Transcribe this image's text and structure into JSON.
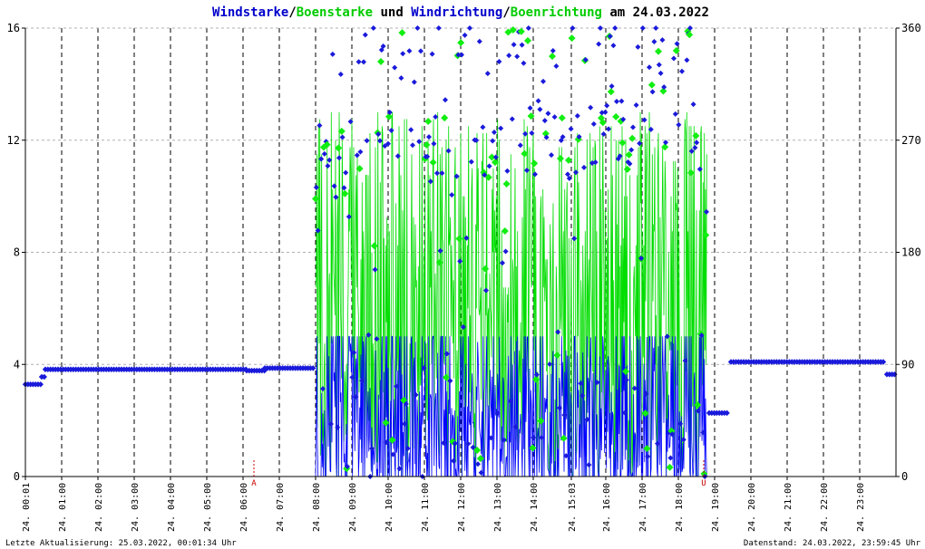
{
  "title_parts": [
    {
      "text": "Windstarke",
      "color": "#0000cc"
    },
    {
      "text": "/",
      "color": "#000000"
    },
    {
      "text": "Boenstarke",
      "color": "#00cc00"
    },
    {
      "text": " und ",
      "color": "#000000"
    },
    {
      "text": "Windrichtung",
      "color": "#0000cc"
    },
    {
      "text": "/",
      "color": "#000000"
    },
    {
      "text": "Boenrichtung",
      "color": "#00cc00"
    },
    {
      "text": " am 24.03.2022",
      "color": "#000000"
    }
  ],
  "footer": {
    "left": "Letzte Aktualisierung: 25.03.2022, 00:01:34 Uhr",
    "right": "Datenstand: 24.03.2022, 23:59:45 Uhr"
  },
  "colors": {
    "wind": "#0000ff",
    "gust": "#00dd00",
    "dir_marker": "#1a1adb",
    "gust_dir_marker": "#11ee11",
    "grid": "#000000",
    "sun_marker": "#cc0000"
  },
  "chart_data": {
    "type": "line",
    "x_unit": "time of day (hours)",
    "xlim": [
      0,
      24
    ],
    "ylim_left": [
      0,
      16
    ],
    "ylim_right": [
      0,
      360
    ],
    "y_ticks_left": [
      "0",
      "4",
      "8",
      "12",
      "16"
    ],
    "y_ticks_right": [
      "0",
      "90",
      "180",
      "270",
      "360"
    ],
    "x_tick_labels": [
      "24. 00:01",
      "24. 01:00",
      "24. 02:00",
      "24. 03:00",
      "24. 04:00",
      "24. 05:00",
      "24. 06:00",
      "24. 07:00",
      "24. 08:00",
      "24. 09:00",
      "24. 10:00",
      "24. 11:00",
      "24. 12:00",
      "24. 13:00",
      "24. 14:00",
      "24. 15:03",
      "24. 16:00",
      "24. 17:00",
      "24. 18:00",
      "24. 19:00",
      "24. 20:00",
      "24. 21:00",
      "24. 22:00",
      "24. 23:00"
    ],
    "x_tick_hours": [
      0.0,
      1,
      2,
      3,
      4,
      5,
      6,
      7,
      8,
      9,
      10,
      11,
      12,
      13,
      14,
      15.05,
      16,
      17,
      18,
      19,
      20,
      21,
      22,
      23
    ],
    "sun_markers": [
      {
        "label": "A",
        "hour": 6.3
      },
      {
        "label": "U",
        "hour": 18.7
      }
    ],
    "grid": "dashed vertical hourly, dotted horizontal",
    "series": [
      {
        "name": "Windstarke",
        "axis": "left"
      },
      {
        "name": "Boenstarke",
        "axis": "left"
      },
      {
        "name": "Windrichtung",
        "axis": "right"
      },
      {
        "name": "Boenrichtung",
        "axis": "right"
      }
    ],
    "direction_segments": [
      {
        "from": 0.0,
        "to": 0.45,
        "dir": 74
      },
      {
        "from": 0.45,
        "to": 0.55,
        "dir": 80
      },
      {
        "from": 0.55,
        "to": 6.1,
        "dir": 86
      },
      {
        "from": 6.1,
        "to": 6.6,
        "dir": 85
      },
      {
        "from": 6.6,
        "to": 7.95,
        "dir": 87
      },
      {
        "from": 18.85,
        "to": 19.4,
        "dir": 51
      },
      {
        "from": 19.45,
        "to": 23.7,
        "dir": 92
      },
      {
        "from": 23.75,
        "to": 24.0,
        "dir": 82
      }
    ],
    "variable_window": {
      "from": 8.0,
      "to": 18.8,
      "wind_range_kn": [
        0,
        5
      ],
      "gust_range_kn": [
        0,
        13
      ],
      "dir_range_deg": [
        0,
        360
      ]
    }
  }
}
